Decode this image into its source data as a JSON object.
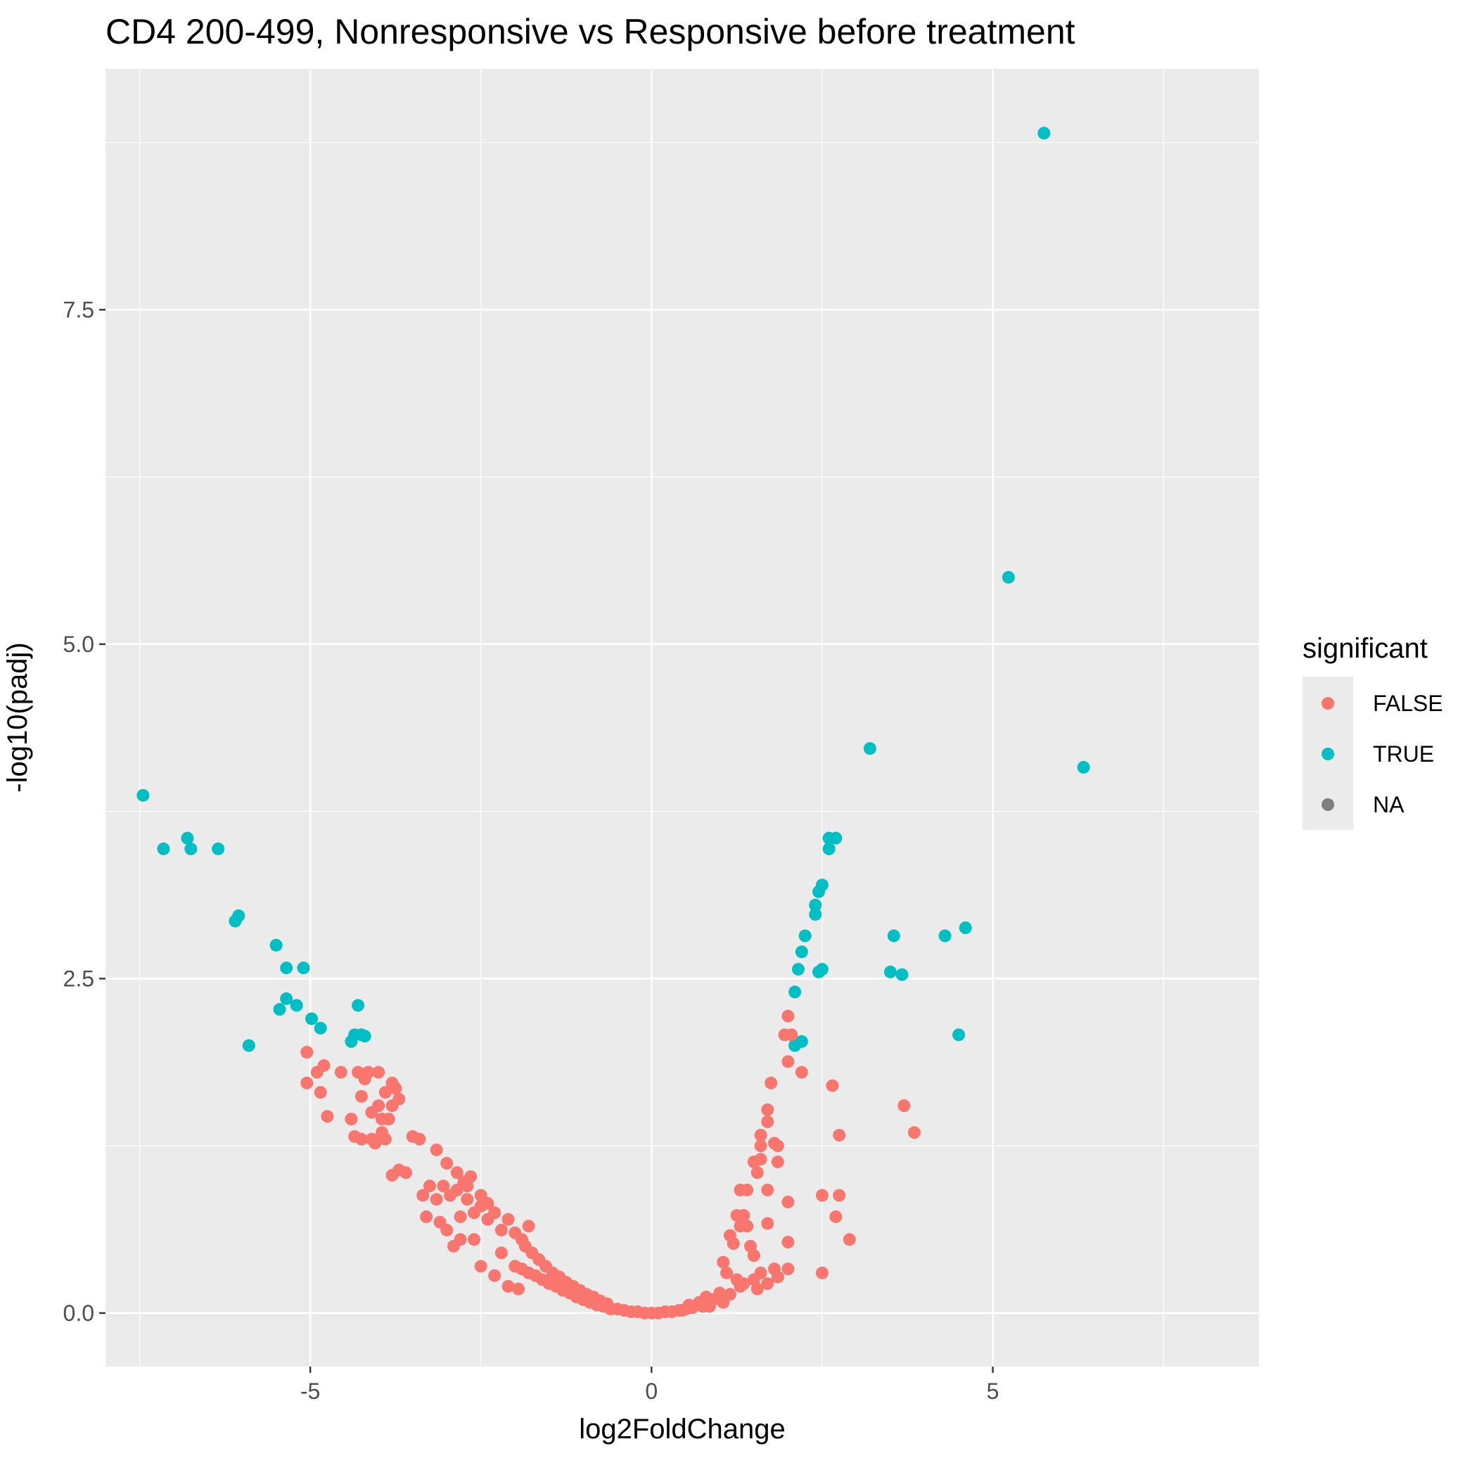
{
  "chart_data": {
    "type": "scatter",
    "title": "CD4 200-499, Nonresponsive vs Responsive before treatment",
    "xlabel": "log2FoldChange",
    "ylabel": "-log10(padj)",
    "xlim": [
      -8.0,
      8.9
    ],
    "ylim": [
      -0.4,
      9.3
    ],
    "x_ticks": [
      -5,
      0,
      5
    ],
    "x_tick_labels": [
      "-5",
      "0",
      "5"
    ],
    "y_ticks": [
      0,
      2.5,
      5,
      7.5
    ],
    "y_tick_labels": [
      "0.0",
      "2.5",
      "5.0",
      "7.5"
    ],
    "grid": true,
    "legend": {
      "title": "significant",
      "position": "right",
      "entries": [
        {
          "label": "FALSE",
          "color": "#F8766D"
        },
        {
          "label": "TRUE",
          "color": "#00BFC4"
        },
        {
          "label": "NA",
          "color": "#7F7F7F"
        }
      ]
    },
    "colors": {
      "FALSE": "#F8766D",
      "TRUE": "#00BFC4",
      "panel": "#EBEBEB",
      "grid": "#FFFFFF"
    },
    "series": [
      {
        "name": "TRUE",
        "points": [
          [
            5.75,
            8.82
          ],
          [
            5.23,
            5.5
          ],
          [
            3.2,
            4.22
          ],
          [
            6.33,
            4.08
          ],
          [
            -7.45,
            3.87
          ],
          [
            -6.8,
            3.55
          ],
          [
            -6.75,
            3.47
          ],
          [
            -7.15,
            3.47
          ],
          [
            -6.35,
            3.47
          ],
          [
            2.6,
            3.55
          ],
          [
            2.7,
            3.55
          ],
          [
            2.6,
            3.47
          ],
          [
            2.5,
            3.2
          ],
          [
            2.45,
            3.15
          ],
          [
            2.4,
            3.05
          ],
          [
            2.4,
            2.98
          ],
          [
            -6.05,
            2.97
          ],
          [
            -6.1,
            2.93
          ],
          [
            4.6,
            2.88
          ],
          [
            4.3,
            2.82
          ],
          [
            3.55,
            2.82
          ],
          [
            2.25,
            2.82
          ],
          [
            -5.5,
            2.75
          ],
          [
            2.2,
            2.7
          ],
          [
            -5.35,
            2.58
          ],
          [
            -5.1,
            2.58
          ],
          [
            2.15,
            2.57
          ],
          [
            2.5,
            2.57
          ],
          [
            2.45,
            2.55
          ],
          [
            3.5,
            2.55
          ],
          [
            3.67,
            2.53
          ],
          [
            -5.35,
            2.35
          ],
          [
            2.1,
            2.4
          ],
          [
            -5.45,
            2.27
          ],
          [
            -5.2,
            2.3
          ],
          [
            -4.3,
            2.3
          ],
          [
            -4.98,
            2.2
          ],
          [
            -4.85,
            2.13
          ],
          [
            -4.35,
            2.08
          ],
          [
            -4.25,
            2.08
          ],
          [
            -4.4,
            2.03
          ],
          [
            -4.2,
            2.07
          ],
          [
            4.5,
            2.08
          ],
          [
            2.2,
            2.03
          ],
          [
            2.1,
            2.0
          ],
          [
            -5.9,
            2.0
          ]
        ]
      },
      {
        "name": "FALSE",
        "points": [
          [
            2.0,
            2.22
          ],
          [
            1.95,
            2.08
          ],
          [
            2.05,
            2.08
          ],
          [
            2.0,
            1.88
          ],
          [
            2.2,
            1.8
          ],
          [
            1.75,
            1.72
          ],
          [
            2.65,
            1.7
          ],
          [
            1.7,
            1.52
          ],
          [
            1.7,
            1.43
          ],
          [
            1.6,
            1.33
          ],
          [
            1.6,
            1.25
          ],
          [
            1.8,
            1.27
          ],
          [
            1.85,
            1.25
          ],
          [
            1.5,
            1.13
          ],
          [
            1.6,
            1.15
          ],
          [
            1.55,
            1.05
          ],
          [
            1.85,
            1.13
          ],
          [
            1.3,
            0.92
          ],
          [
            1.4,
            0.92
          ],
          [
            1.7,
            0.92
          ],
          [
            2.0,
            0.83
          ],
          [
            1.25,
            0.73
          ],
          [
            1.35,
            0.73
          ],
          [
            1.3,
            0.65
          ],
          [
            1.4,
            0.65
          ],
          [
            1.7,
            0.67
          ],
          [
            1.15,
            0.58
          ],
          [
            1.2,
            0.52
          ],
          [
            1.45,
            0.5
          ],
          [
            1.5,
            0.43
          ],
          [
            2.0,
            0.53
          ],
          [
            2.0,
            0.33
          ],
          [
            1.8,
            0.33
          ],
          [
            1.6,
            0.3
          ],
          [
            1.05,
            0.38
          ],
          [
            1.1,
            0.3
          ],
          [
            1.25,
            0.25
          ],
          [
            1.35,
            0.22
          ],
          [
            1.7,
            0.22
          ],
          [
            1.85,
            0.27
          ],
          [
            2.5,
            0.88
          ],
          [
            2.75,
            0.88
          ],
          [
            2.7,
            0.72
          ],
          [
            2.75,
            1.33
          ],
          [
            2.9,
            0.55
          ],
          [
            2.5,
            0.3
          ],
          [
            3.7,
            1.55
          ],
          [
            3.85,
            1.35
          ],
          [
            1.5,
            0.25
          ],
          [
            1.55,
            0.18
          ],
          [
            1.3,
            0.2
          ],
          [
            1.15,
            0.14
          ],
          [
            1.0,
            0.15
          ],
          [
            0.9,
            0.1
          ],
          [
            1.05,
            0.08
          ],
          [
            0.85,
            0.05
          ],
          [
            0.8,
            0.12
          ],
          [
            0.75,
            0.05
          ],
          [
            0.7,
            0.08
          ],
          [
            0.6,
            0.04
          ],
          [
            0.55,
            0.06
          ],
          [
            0.5,
            0.03
          ],
          [
            0.45,
            0.02
          ],
          [
            0.4,
            0.02
          ],
          [
            0.3,
            0.01
          ],
          [
            0.2,
            0.01
          ],
          [
            0.1,
            0.0
          ],
          [
            0.0,
            0.0
          ],
          [
            -0.1,
            0.0
          ],
          [
            -0.2,
            0.01
          ],
          [
            -0.3,
            0.01
          ],
          [
            -0.4,
            0.02
          ],
          [
            -0.5,
            0.03
          ],
          [
            -0.6,
            0.03
          ],
          [
            -0.7,
            0.05
          ],
          [
            -0.8,
            0.06
          ],
          [
            -0.9,
            0.08
          ],
          [
            -1.0,
            0.1
          ],
          [
            -1.1,
            0.12
          ],
          [
            -1.2,
            0.15
          ],
          [
            -1.3,
            0.17
          ],
          [
            -1.4,
            0.2
          ],
          [
            -1.5,
            0.22
          ],
          [
            -1.6,
            0.25
          ],
          [
            -1.7,
            0.28
          ],
          [
            -1.8,
            0.3
          ],
          [
            -1.9,
            0.33
          ],
          [
            -2.0,
            0.35
          ],
          [
            -0.65,
            0.07
          ],
          [
            -0.75,
            0.09
          ],
          [
            -0.85,
            0.12
          ],
          [
            -0.95,
            0.14
          ],
          [
            -1.05,
            0.17
          ],
          [
            -1.15,
            0.2
          ],
          [
            -1.25,
            0.23
          ],
          [
            -1.35,
            0.27
          ],
          [
            -1.45,
            0.3
          ],
          [
            -1.55,
            0.35
          ],
          [
            -1.65,
            0.4
          ],
          [
            -1.75,
            0.45
          ],
          [
            -1.85,
            0.5
          ],
          [
            -1.9,
            0.55
          ],
          [
            -2.0,
            0.6
          ],
          [
            -2.1,
            0.7
          ],
          [
            -2.2,
            0.62
          ],
          [
            -2.3,
            0.75
          ],
          [
            -2.4,
            0.7
          ],
          [
            -2.5,
            0.8
          ],
          [
            -2.6,
            0.75
          ],
          [
            -2.7,
            0.85
          ],
          [
            -2.8,
            0.72
          ],
          [
            -1.8,
            0.65
          ],
          [
            -2.2,
            0.45
          ],
          [
            -2.5,
            0.35
          ],
          [
            -2.1,
            0.2
          ],
          [
            -2.3,
            0.28
          ],
          [
            -1.95,
            0.18
          ],
          [
            -2.6,
            0.55
          ],
          [
            -2.8,
            0.55
          ],
          [
            -2.9,
            0.5
          ],
          [
            -3.0,
            0.62
          ],
          [
            -3.1,
            0.68
          ],
          [
            -2.7,
            0.95
          ],
          [
            -2.5,
            0.88
          ],
          [
            -2.4,
            0.82
          ],
          [
            -2.3,
            0.75
          ],
          [
            -2.65,
            1.02
          ],
          [
            -2.75,
            0.98
          ],
          [
            -2.85,
            0.92
          ],
          [
            -2.95,
            0.88
          ],
          [
            -3.05,
            0.95
          ],
          [
            -3.15,
            0.85
          ],
          [
            -3.25,
            0.95
          ],
          [
            -3.35,
            0.88
          ],
          [
            -2.85,
            1.05
          ],
          [
            -3.0,
            1.12
          ],
          [
            -3.15,
            1.22
          ],
          [
            -3.3,
            0.72
          ],
          [
            -3.4,
            1.3
          ],
          [
            -3.5,
            1.32
          ],
          [
            -3.6,
            1.05
          ],
          [
            -3.7,
            1.07
          ],
          [
            -3.8,
            1.03
          ],
          [
            -3.9,
            1.3
          ],
          [
            -3.95,
            1.35
          ],
          [
            -4.05,
            1.27
          ],
          [
            -3.85,
            1.45
          ],
          [
            -3.8,
            1.55
          ],
          [
            -3.7,
            1.6
          ],
          [
            -3.75,
            1.68
          ],
          [
            -3.8,
            1.72
          ],
          [
            -3.9,
            1.65
          ],
          [
            -4.0,
            1.55
          ],
          [
            -4.1,
            1.5
          ],
          [
            -4.0,
            1.8
          ],
          [
            -4.15,
            1.8
          ],
          [
            -4.2,
            1.75
          ],
          [
            -4.3,
            1.8
          ],
          [
            -4.25,
            1.62
          ],
          [
            -4.25,
            1.3
          ],
          [
            -4.35,
            1.32
          ],
          [
            -4.55,
            1.8
          ],
          [
            -4.8,
            1.85
          ],
          [
            -4.9,
            1.8
          ],
          [
            -5.05,
            1.95
          ],
          [
            -5.05,
            1.72
          ],
          [
            -4.85,
            1.65
          ],
          [
            -4.75,
            1.47
          ],
          [
            -4.4,
            1.45
          ],
          [
            -3.95,
            1.45
          ],
          [
            -4.1,
            1.3
          ]
        ]
      }
    ]
  }
}
